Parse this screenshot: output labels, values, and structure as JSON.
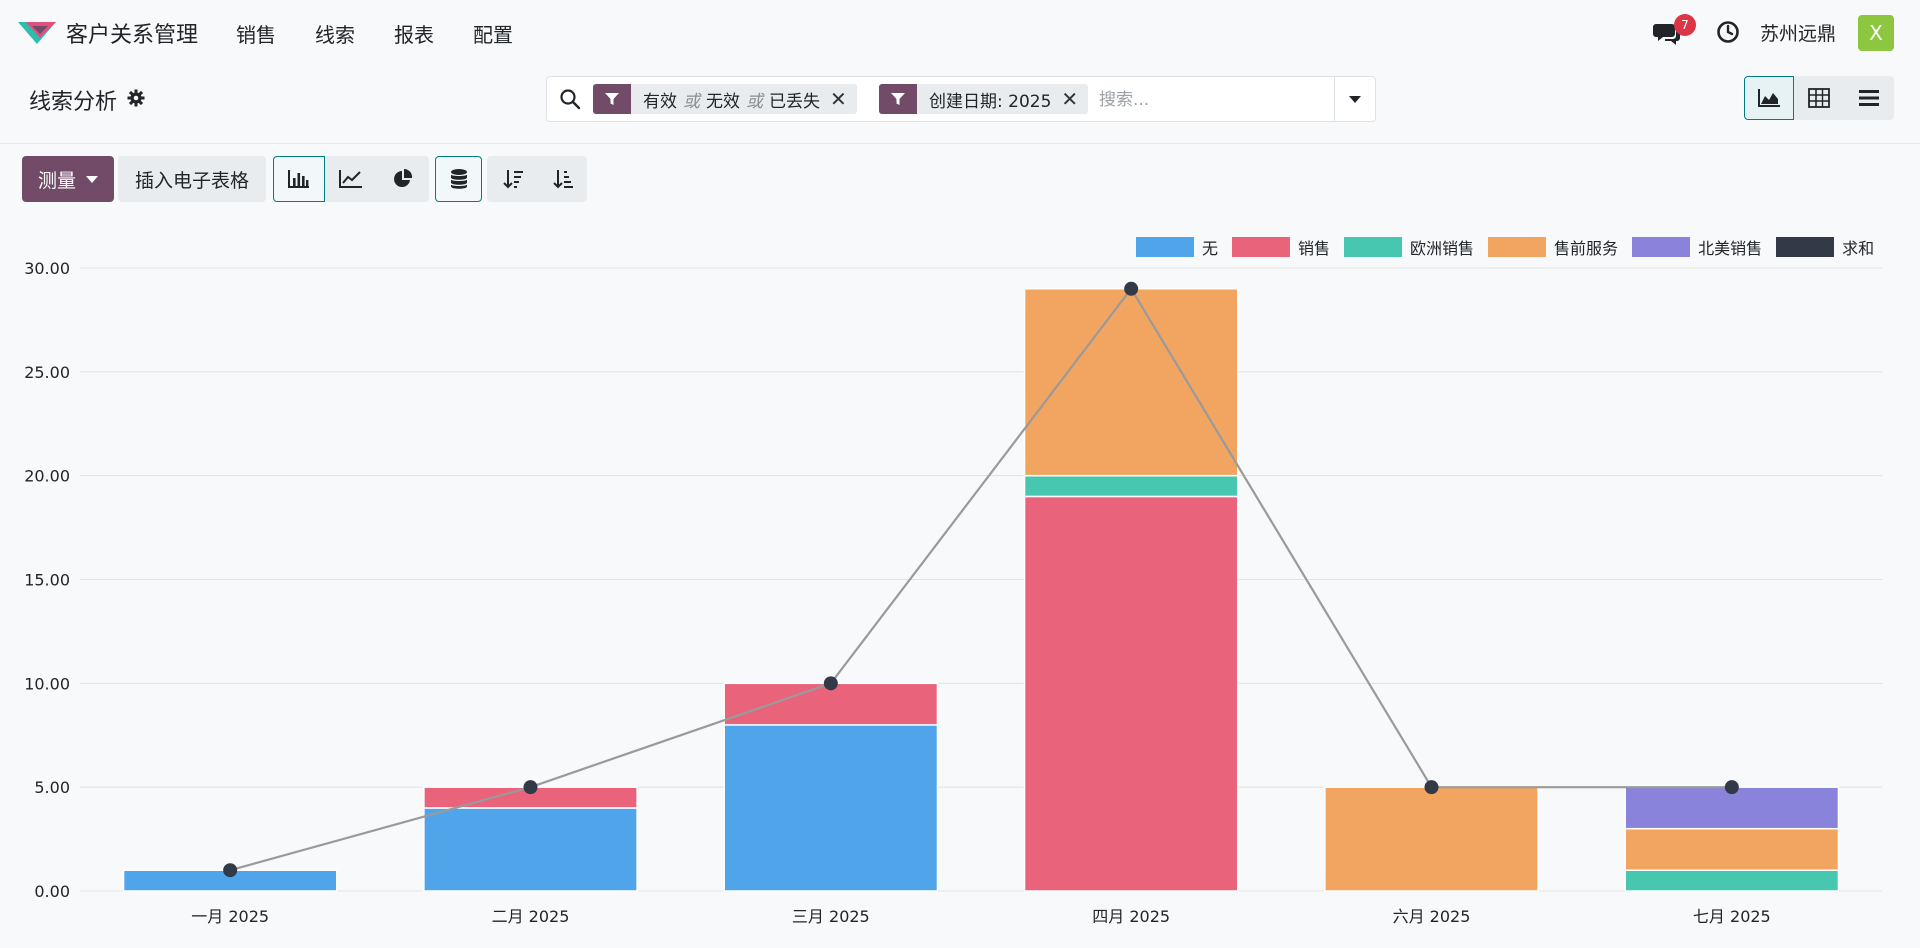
{
  "navbar": {
    "app_name": "客户关系管理",
    "menu": [
      "销售",
      "线索",
      "报表",
      "配置"
    ],
    "chat_badge": "7",
    "company": "苏州远鼎",
    "avatar_letter": "X"
  },
  "control_panel": {
    "title": "线索分析",
    "facets": [
      {
        "values": [
          "有效",
          "无效",
          "已丢失"
        ],
        "separator": "或"
      },
      {
        "values": [
          "创建日期: 2025"
        ]
      }
    ],
    "search_placeholder": "搜索...",
    "views": [
      "graph",
      "pivot",
      "list"
    ],
    "active_view": "graph"
  },
  "toolbar": {
    "measure_label": "测量",
    "insert_sheet_label": "插入电子表格",
    "chart_types": [
      "bar",
      "line",
      "pie"
    ],
    "active_chart_type": "bar",
    "stacked": true
  },
  "colors": {
    "brand": "#714b67",
    "accent": "#017e84",
    "badge": "#dc3545"
  },
  "chart_data": {
    "type": "bar",
    "stacked": true,
    "categories": [
      "一月 2025",
      "二月 2025",
      "三月 2025",
      "四月 2025",
      "六月 2025",
      "七月 2025"
    ],
    "series": [
      {
        "name": "无",
        "color": "#4fa4ea",
        "values": [
          1,
          4,
          8,
          0,
          0,
          0
        ]
      },
      {
        "name": "销售",
        "color": "#e9637a",
        "values": [
          0,
          1,
          2,
          19,
          0,
          0
        ]
      },
      {
        "name": "欧洲销售",
        "color": "#47c6b0",
        "values": [
          0,
          0,
          0,
          1,
          0,
          1
        ]
      },
      {
        "name": "售前服务",
        "color": "#f2a561",
        "values": [
          0,
          0,
          0,
          9,
          5,
          2
        ]
      },
      {
        "name": "北美销售",
        "color": "#8a83db",
        "values": [
          0,
          0,
          0,
          0,
          0,
          2
        ]
      }
    ],
    "sum_series": {
      "name": "求和",
      "color": "#313a46",
      "values": [
        1,
        5,
        10,
        29,
        5,
        5
      ]
    },
    "yticks": [
      "0.00",
      "5.00",
      "10.00",
      "15.00",
      "20.00",
      "25.00",
      "30.00"
    ],
    "ylim": [
      0,
      30
    ],
    "grid": true,
    "legend": "top-right"
  }
}
